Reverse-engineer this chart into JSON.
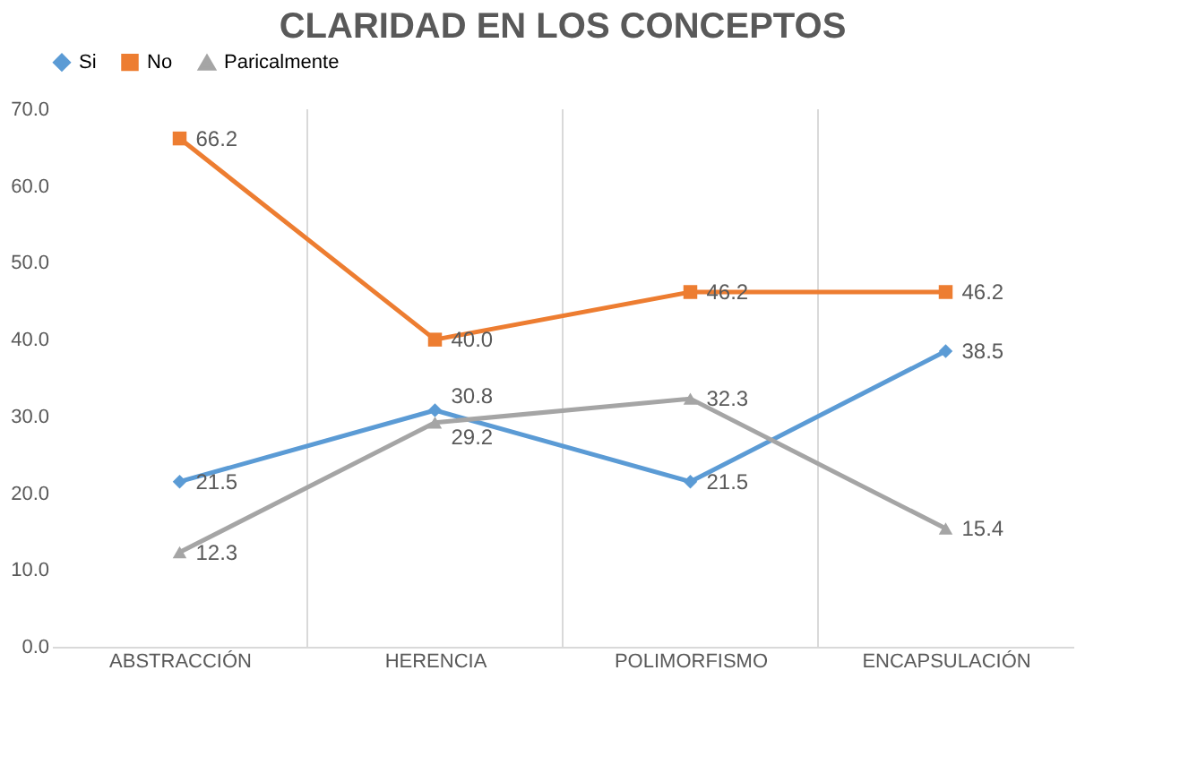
{
  "chart_data": {
    "type": "line",
    "title": "CLARIDAD EN LOS CONCEPTOS",
    "categories": [
      "ABSTRACCIÓN",
      "HERENCIA",
      "POLIMORFISMO",
      "ENCAPSULACIÓN"
    ],
    "series": [
      {
        "name": "Si",
        "color": "#5b9bd5",
        "marker": "diamond",
        "values": [
          21.5,
          30.8,
          21.5,
          38.5
        ],
        "value_labels": [
          "21.5",
          "30.8",
          "21.5",
          "38.5"
        ]
      },
      {
        "name": "No",
        "color": "#ed7d31",
        "marker": "square",
        "values": [
          66.2,
          40.0,
          46.2,
          46.2
        ],
        "value_labels": [
          "66.2",
          "40.0",
          "46.2",
          "46.2"
        ]
      },
      {
        "name": "Paricalmente",
        "color": "#a5a5a5",
        "marker": "triangle",
        "values": [
          12.3,
          29.2,
          32.3,
          15.4
        ],
        "value_labels": [
          "12.3",
          "29.2",
          "32.3",
          "15.4"
        ]
      }
    ],
    "ylim": [
      0,
      70
    ],
    "yticks": [
      {
        "value": 0,
        "label": "0.0"
      },
      {
        "value": 10,
        "label": "10.0"
      },
      {
        "value": 20,
        "label": "20.0"
      },
      {
        "value": 30,
        "label": "30.0"
      },
      {
        "value": 40,
        "label": "40.0"
      },
      {
        "value": 50,
        "label": "50.0"
      },
      {
        "value": 60,
        "label": "60.0"
      },
      {
        "value": 70,
        "label": "70.0"
      }
    ],
    "grid": "x",
    "legend": "top"
  }
}
